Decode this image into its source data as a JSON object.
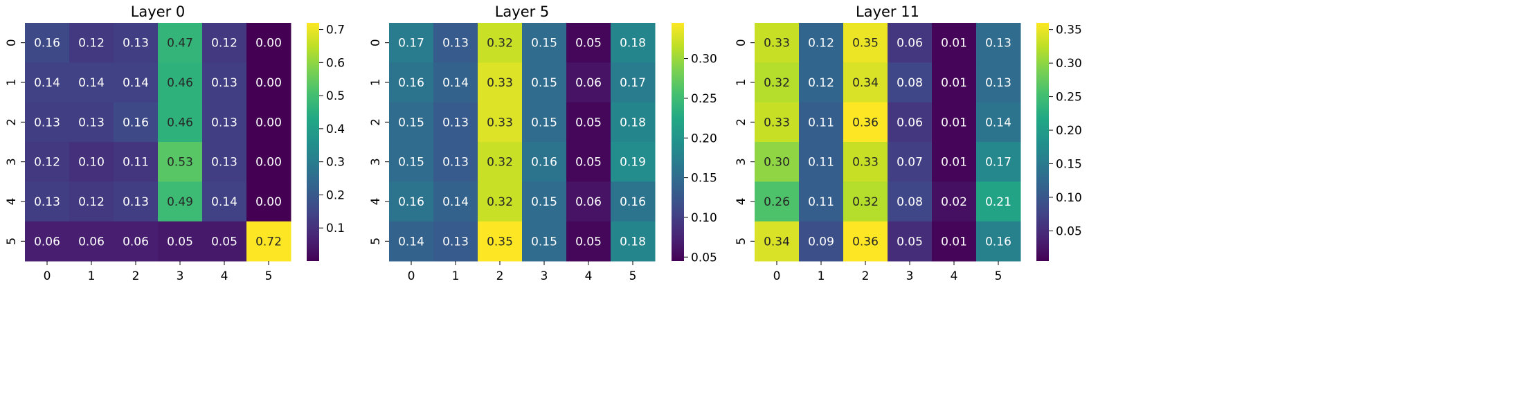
{
  "chart_data": [
    {
      "type": "heatmap",
      "title": "Layer 0",
      "x_ticks": [
        "0",
        "1",
        "2",
        "3",
        "4",
        "5"
      ],
      "y_ticks": [
        "0",
        "1",
        "2",
        "3",
        "4",
        "5"
      ],
      "values": [
        [
          0.16,
          0.12,
          0.13,
          0.47,
          0.12,
          0.0
        ],
        [
          0.14,
          0.14,
          0.14,
          0.46,
          0.13,
          0.0
        ],
        [
          0.13,
          0.13,
          0.16,
          0.46,
          0.13,
          0.0
        ],
        [
          0.12,
          0.1,
          0.11,
          0.53,
          0.13,
          0.0
        ],
        [
          0.13,
          0.12,
          0.13,
          0.49,
          0.14,
          0.0
        ],
        [
          0.06,
          0.06,
          0.06,
          0.05,
          0.05,
          0.72
        ]
      ],
      "colormap": "viridis",
      "vmin": 0.0,
      "vmax": 0.72,
      "colorbar_ticks": [
        0.1,
        0.2,
        0.3,
        0.4,
        0.5,
        0.6,
        0.7
      ],
      "colorbar_tick_labels": [
        "0.1",
        "0.2",
        "0.3",
        "0.4",
        "0.5",
        "0.6",
        "0.7"
      ],
      "annotate": true
    },
    {
      "type": "heatmap",
      "title": "Layer 5",
      "x_ticks": [
        "0",
        "1",
        "2",
        "3",
        "4",
        "5"
      ],
      "y_ticks": [
        "0",
        "1",
        "2",
        "3",
        "4",
        "5"
      ],
      "values": [
        [
          0.17,
          0.13,
          0.32,
          0.15,
          0.05,
          0.18
        ],
        [
          0.16,
          0.14,
          0.33,
          0.15,
          0.06,
          0.17
        ],
        [
          0.15,
          0.13,
          0.33,
          0.15,
          0.05,
          0.18
        ],
        [
          0.15,
          0.13,
          0.32,
          0.16,
          0.05,
          0.19
        ],
        [
          0.16,
          0.14,
          0.32,
          0.15,
          0.06,
          0.16
        ],
        [
          0.14,
          0.13,
          0.35,
          0.15,
          0.05,
          0.18
        ]
      ],
      "colormap": "viridis",
      "vmin": 0.045,
      "vmax": 0.345,
      "colorbar_ticks": [
        0.05,
        0.1,
        0.15,
        0.2,
        0.25,
        0.3
      ],
      "colorbar_tick_labels": [
        "0.05",
        "0.10",
        "0.15",
        "0.20",
        "0.25",
        "0.30"
      ],
      "annotate": true
    },
    {
      "type": "heatmap",
      "title": "Layer 11",
      "x_ticks": [
        "0",
        "1",
        "2",
        "3",
        "4",
        "5"
      ],
      "y_ticks": [
        "0",
        "1",
        "2",
        "3",
        "4",
        "5"
      ],
      "values": [
        [
          0.33,
          0.12,
          0.35,
          0.06,
          0.01,
          0.13
        ],
        [
          0.32,
          0.12,
          0.34,
          0.08,
          0.01,
          0.13
        ],
        [
          0.33,
          0.11,
          0.36,
          0.06,
          0.01,
          0.14
        ],
        [
          0.3,
          0.11,
          0.33,
          0.07,
          0.01,
          0.17
        ],
        [
          0.26,
          0.11,
          0.32,
          0.08,
          0.02,
          0.21
        ],
        [
          0.34,
          0.09,
          0.36,
          0.05,
          0.01,
          0.16
        ]
      ],
      "colormap": "viridis",
      "vmin": 0.005,
      "vmax": 0.36,
      "colorbar_ticks": [
        0.05,
        0.1,
        0.15,
        0.2,
        0.25,
        0.3,
        0.35
      ],
      "colorbar_tick_labels": [
        "0.05",
        "0.10",
        "0.15",
        "0.20",
        "0.25",
        "0.30",
        "0.35"
      ],
      "annotate": true
    }
  ]
}
